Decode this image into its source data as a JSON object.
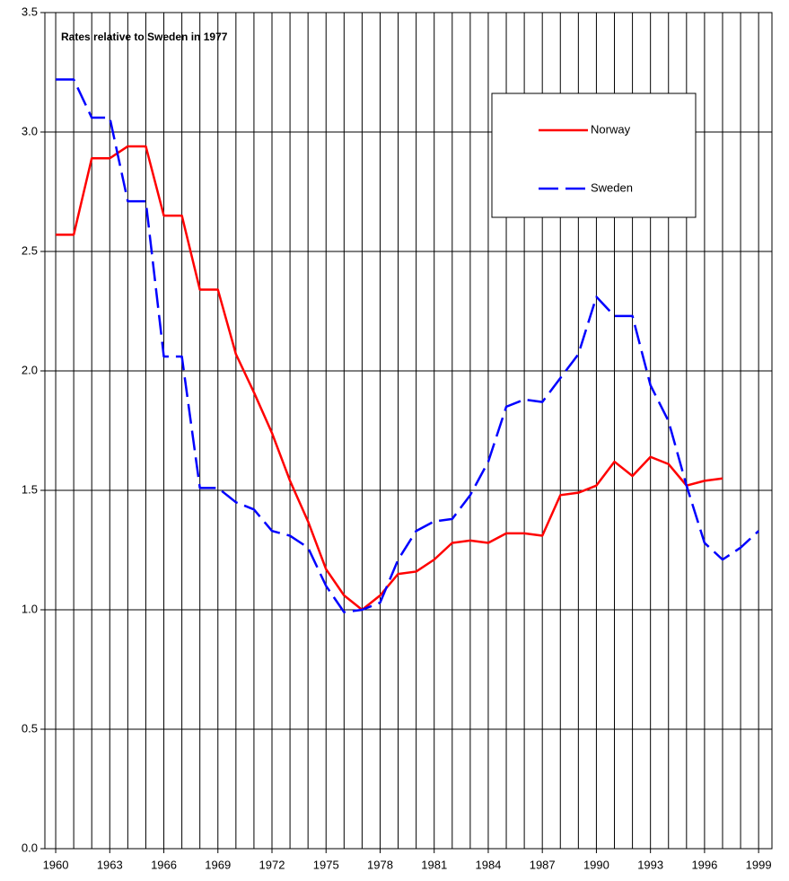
{
  "chart_data": {
    "type": "line",
    "title": "Rates relative to Sweden in 1977",
    "x": [
      1960,
      1961,
      1962,
      1963,
      1964,
      1965,
      1966,
      1967,
      1968,
      1969,
      1970,
      1971,
      1972,
      1973,
      1974,
      1975,
      1976,
      1977,
      1978,
      1979,
      1980,
      1981,
      1982,
      1983,
      1984,
      1985,
      1986,
      1987,
      1988,
      1989,
      1990,
      1991,
      1992,
      1993,
      1994,
      1995,
      1996,
      1997,
      1998,
      1999
    ],
    "series": [
      {
        "name": "Norway",
        "color": "#ff0000",
        "dash": "solid",
        "values": [
          2.57,
          2.57,
          2.89,
          2.89,
          2.94,
          2.94,
          2.65,
          2.65,
          2.34,
          2.34,
          2.07,
          1.91,
          1.74,
          1.54,
          1.37,
          1.17,
          1.06,
          1.0,
          1.06,
          1.15,
          1.16,
          1.21,
          1.28,
          1.29,
          1.28,
          1.32,
          1.32,
          1.31,
          1.48,
          1.49,
          1.52,
          1.62,
          1.56,
          1.64,
          1.61,
          1.52,
          1.54,
          1.55,
          null,
          null
        ]
      },
      {
        "name": "Sweden",
        "color": "#0000ff",
        "dash": "dashed",
        "values": [
          3.22,
          3.22,
          3.06,
          3.06,
          2.71,
          2.71,
          2.06,
          2.06,
          1.51,
          1.51,
          1.45,
          1.42,
          1.33,
          1.31,
          1.26,
          1.1,
          0.99,
          1.0,
          1.03,
          1.21,
          1.33,
          1.37,
          1.38,
          1.48,
          1.62,
          1.85,
          1.88,
          1.87,
          1.97,
          2.07,
          2.31,
          2.23,
          2.23,
          1.94,
          1.79,
          1.52,
          1.28,
          1.21,
          1.26,
          1.33
        ]
      }
    ],
    "xlim": [
      1959.4,
      1999.74
    ],
    "xticks": [
      1960,
      1963,
      1966,
      1969,
      1972,
      1975,
      1978,
      1981,
      1984,
      1987,
      1990,
      1993,
      1996,
      1999
    ],
    "ylim": [
      0,
      3.5
    ],
    "yticks": [
      {
        "value": 0,
        "label": "0.0"
      },
      0.5,
      {
        "value": 1,
        "label": "1.0"
      },
      1.5,
      {
        "value": 2,
        "label": "2.0"
      },
      2.5,
      {
        "value": 3,
        "label": "3.0"
      },
      3.5
    ],
    "grid": true,
    "legend": "upper right"
  }
}
